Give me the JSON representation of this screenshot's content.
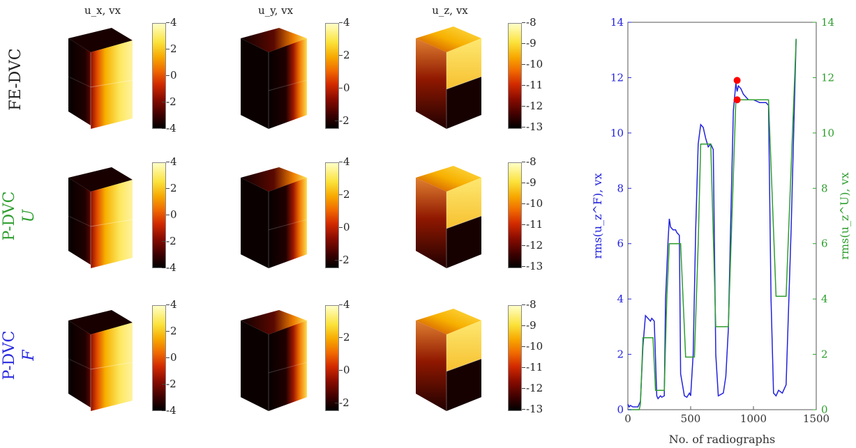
{
  "row_labels": [
    {
      "line1": "FE-DVC",
      "line2": "",
      "color": "#222222"
    },
    {
      "line1": "P-DVC",
      "line2": "U",
      "color": "#2e9e2e"
    },
    {
      "line1": "P-DVC",
      "line2": "F",
      "color": "#2a2ae0"
    }
  ],
  "column_labels": [
    "u_x, vx",
    "u_y, vx",
    "u_z, vx"
  ],
  "colorbars": {
    "ux": [
      "4",
      "2",
      "0",
      "-2",
      "-4"
    ],
    "uy": [
      "4",
      "2",
      "0",
      "-2"
    ],
    "uz": [
      "-8",
      "-9",
      "-10",
      "-11",
      "-12",
      "-13"
    ]
  },
  "chart_data": {
    "type": "line",
    "xlabel": "No. of radiographs",
    "ylabel_left": "rms(u_z^F), vx",
    "ylabel_right": "rms(u_z^U), vx",
    "xlim": [
      0,
      1500
    ],
    "ylim": [
      0,
      14
    ],
    "xticks": [
      "0",
      "500",
      "1000",
      "1500"
    ],
    "yticks": [
      "0",
      "2",
      "4",
      "6",
      "8",
      "10",
      "12",
      "14"
    ],
    "series": [
      {
        "color": "#2222dd",
        "x": [
          0,
          10,
          20,
          40,
          60,
          80,
          100,
          120,
          140,
          160,
          180,
          190,
          210,
          230,
          240,
          260,
          270,
          290,
          300,
          320,
          330,
          340,
          360,
          380,
          390,
          410,
          420,
          450,
          470,
          490,
          500,
          520,
          540,
          560,
          580,
          600,
          620,
          640,
          660,
          680,
          700,
          720,
          760,
          780,
          800,
          820,
          840,
          860,
          870,
          880,
          900,
          920,
          940,
          960,
          1000,
          1050,
          1100,
          1120,
          1140,
          1160,
          1180,
          1200,
          1230,
          1260,
          1300,
          1340
        ],
        "y": [
          0.2,
          0.1,
          0.15,
          0.1,
          0.1,
          0.1,
          0.3,
          2.3,
          3.4,
          3.3,
          3.2,
          3.3,
          3.2,
          0.5,
          0.4,
          0.5,
          0.45,
          0.5,
          4.0,
          6.1,
          6.9,
          6.6,
          6.5,
          6.5,
          6.4,
          6.3,
          1.3,
          0.5,
          0.45,
          0.6,
          0.5,
          2.0,
          6.5,
          9.6,
          10.3,
          10.2,
          9.8,
          9.5,
          9.6,
          9.4,
          2.0,
          0.5,
          0.6,
          1.2,
          2.9,
          7.0,
          10.8,
          11.8,
          11.5,
          11.7,
          11.6,
          11.4,
          11.3,
          11.2,
          11.2,
          11.1,
          11.1,
          11.0,
          4.0,
          0.6,
          0.5,
          0.7,
          0.6,
          0.9,
          6.5,
          13.4
        ]
      },
      {
        "color": "#2e9e2e",
        "x": [
          0,
          90,
          100,
          120,
          130,
          180,
          200,
          220,
          230,
          260,
          270,
          290,
          310,
          330,
          380,
          400,
          420,
          460,
          480,
          500,
          530,
          560,
          580,
          640,
          660,
          700,
          720,
          760,
          800,
          860,
          870,
          1110,
          1120,
          1180,
          1190,
          1250,
          1260,
          1340
        ],
        "y": [
          0,
          0,
          0.2,
          2.6,
          2.6,
          2.6,
          2.6,
          0.7,
          0.7,
          0.7,
          0.7,
          0.7,
          4.0,
          6.0,
          6.0,
          6.0,
          6.0,
          1.9,
          1.9,
          1.9,
          1.9,
          6.0,
          9.6,
          9.6,
          9.6,
          3.0,
          3.0,
          3.0,
          3.0,
          11.2,
          11.2,
          11.2,
          11.2,
          4.1,
          4.1,
          4.1,
          4.1,
          13.4
        ]
      }
    ],
    "markers": [
      {
        "x": 870,
        "y": 11.9,
        "color": "#ff0000"
      },
      {
        "x": 870,
        "y": 11.2,
        "color": "#ff0000"
      }
    ]
  }
}
